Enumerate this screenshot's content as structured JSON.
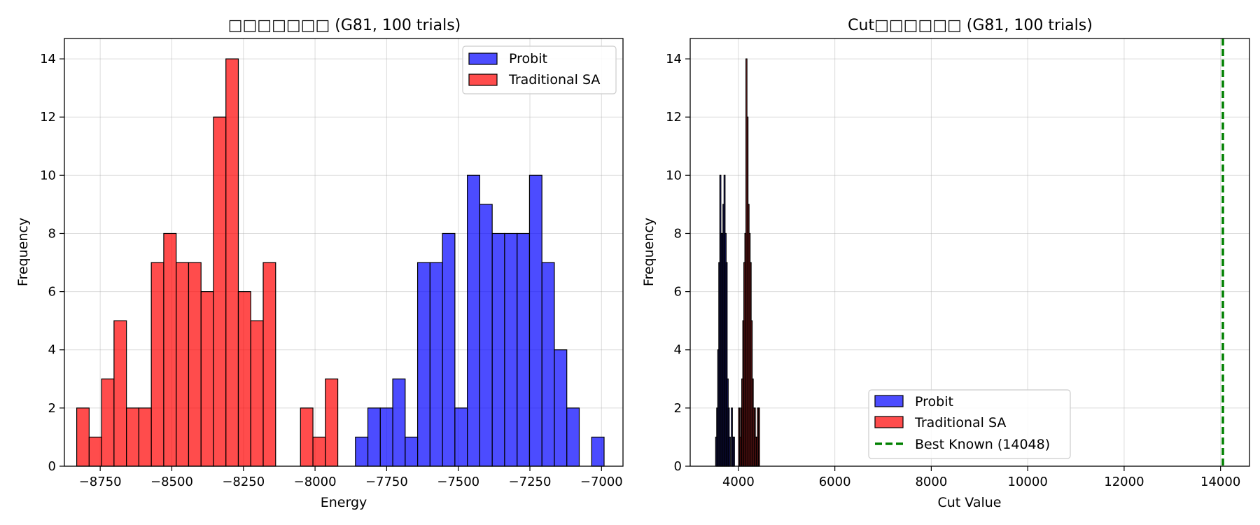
{
  "colors": {
    "probit": "#0000ff",
    "traditional": "#ff0000",
    "best_known": "#008000",
    "edge": "#000000",
    "grid": "#b0b0b0"
  },
  "chart_data": [
    {
      "type": "histogram",
      "title": "□□□□□□□ (G81, 100 trials)",
      "xlabel": "Energy",
      "ylabel": "Frequency",
      "xlim": [
        -8875,
        -6925
      ],
      "ylim": [
        0,
        14.7
      ],
      "xticks": [
        -8750,
        -8500,
        -8250,
        -8000,
        -7750,
        -7500,
        -7250,
        -7000
      ],
      "xtick_labels": [
        "−8750",
        "−8500",
        "−8250",
        "−8000",
        "−7750",
        "−7500",
        "−7250",
        "−7000"
      ],
      "yticks": [
        0,
        2,
        4,
        6,
        8,
        10,
        12,
        14
      ],
      "ytick_labels": [
        "0",
        "2",
        "4",
        "6",
        "8",
        "10",
        "12",
        "14"
      ],
      "grid": true,
      "legend_position": "upper right",
      "series": [
        {
          "name": "Probit",
          "color_key": "probit",
          "bin_start": -7859,
          "bin_width": 43.4,
          "counts": [
            1,
            2,
            2,
            3,
            1,
            7,
            7,
            8,
            2,
            10,
            9,
            8,
            8,
            8,
            10,
            7,
            4,
            2,
            0,
            1
          ]
        },
        {
          "name": "Traditional SA",
          "color_key": "traditional",
          "bin_start": -8832,
          "bin_width": 43.4,
          "counts": [
            2,
            1,
            3,
            5,
            2,
            2,
            7,
            8,
            7,
            7,
            6,
            12,
            14,
            6,
            5,
            7,
            0,
            0,
            2,
            1,
            3
          ]
        }
      ]
    },
    {
      "type": "histogram",
      "title": "Cut□□□□□□ (G81, 100 trials)",
      "xlabel": "Cut Value",
      "ylabel": "Frequency",
      "xlim": [
        3000,
        14600
      ],
      "ylim": [
        0,
        14.7
      ],
      "xticks": [
        4000,
        6000,
        8000,
        10000,
        12000,
        14000
      ],
      "xtick_labels": [
        "4000",
        "6000",
        "8000",
        "10000",
        "12000",
        "14000"
      ],
      "yticks": [
        0,
        2,
        4,
        6,
        8,
        10,
        12,
        14
      ],
      "ytick_labels": [
        "0",
        "2",
        "4",
        "6",
        "8",
        "10",
        "12",
        "14"
      ],
      "grid": true,
      "legend_position": "lower center",
      "series": [
        {
          "name": "Probit",
          "color_key": "probit",
          "bin_start": 3528,
          "bin_width": 21.7,
          "counts": [
            1,
            2,
            4,
            7,
            10,
            8,
            8,
            9,
            10,
            8,
            7,
            3,
            2,
            1,
            0,
            2,
            1,
            1
          ]
        },
        {
          "name": "Traditional SA",
          "color_key": "traditional",
          "bin_start": 4004,
          "bin_width": 21.7,
          "counts": [
            2,
            1,
            2,
            3,
            5,
            7,
            8,
            14,
            12,
            9,
            8,
            7,
            5,
            3,
            2,
            2,
            1,
            1,
            2,
            2
          ]
        }
      ],
      "reference_line": {
        "name": "Best Known (14048)",
        "x": 14048,
        "color_key": "best_known",
        "style": "dashed"
      }
    }
  ]
}
